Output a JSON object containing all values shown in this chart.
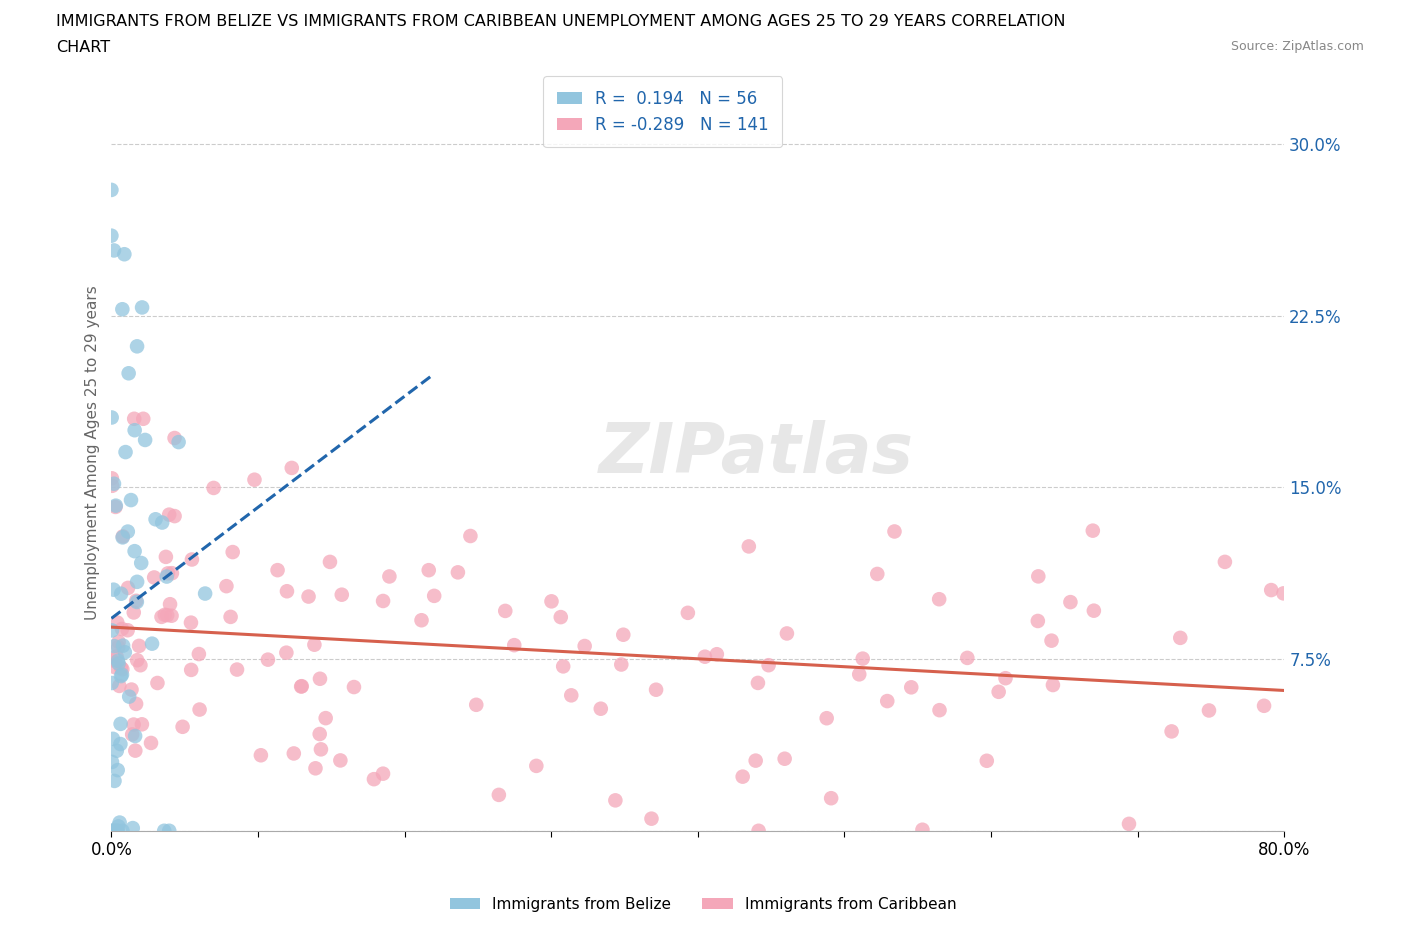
{
  "title_line1": "IMMIGRANTS FROM BELIZE VS IMMIGRANTS FROM CARIBBEAN UNEMPLOYMENT AMONG AGES 25 TO 29 YEARS CORRELATION",
  "title_line2": "CHART",
  "source": "Source: ZipAtlas.com",
  "ylabel": "Unemployment Among Ages 25 to 29 years",
  "belize_R": 0.194,
  "belize_N": 56,
  "caribbean_R": -0.289,
  "caribbean_N": 141,
  "belize_color": "#92c5de",
  "caribbean_color": "#f4a7b9",
  "belize_trend_color": "#2166ac",
  "caribbean_trend_color": "#d6604d",
  "xlim": [
    0.0,
    0.8
  ],
  "ylim": [
    0.0,
    0.33
  ],
  "ytick_vals": [
    0.0,
    0.075,
    0.15,
    0.225,
    0.3
  ],
  "ytick_labels": [
    "",
    "7.5%",
    "15.0%",
    "22.5%",
    "30.0%"
  ],
  "xtick_vals": [
    0.0,
    0.1,
    0.2,
    0.3,
    0.4,
    0.5,
    0.6,
    0.7,
    0.8
  ],
  "watermark": "ZIPatlas",
  "seed": 12
}
